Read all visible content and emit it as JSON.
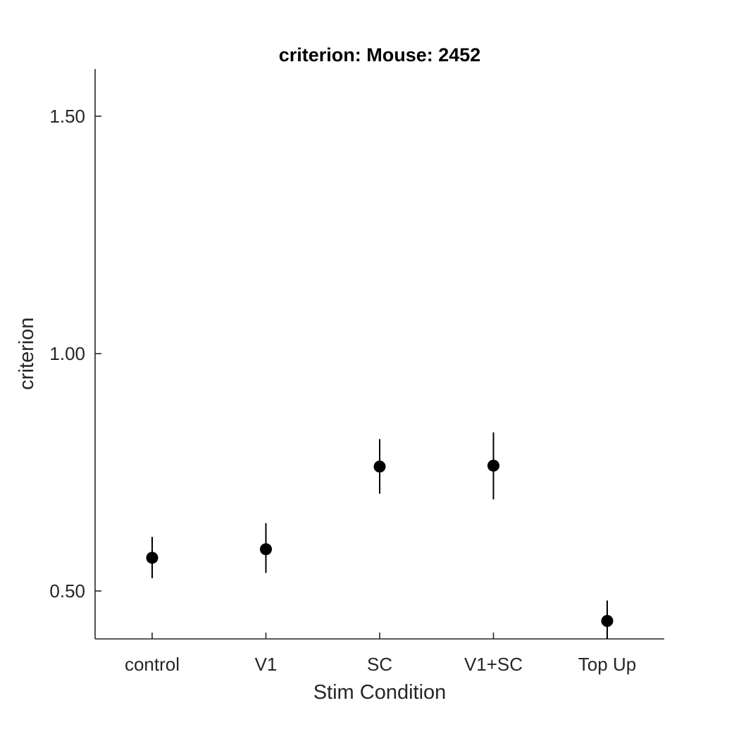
{
  "chart_data": {
    "type": "scatter",
    "title": "criterion: Mouse: 2452",
    "xlabel": "Stim Condition",
    "ylabel": "criterion",
    "categories": [
      "control",
      "V1",
      "SC",
      "V1+SC",
      "Top Up"
    ],
    "series": [
      {
        "values": [
          0.57,
          0.588,
          0.762,
          0.764,
          0.437
        ],
        "err_low": [
          0.527,
          0.538,
          0.705,
          0.693,
          0.395
        ],
        "err_high": [
          0.614,
          0.643,
          0.82,
          0.834,
          0.48
        ]
      }
    ],
    "ylim": [
      0.4,
      1.6
    ],
    "yticks": [
      0.5,
      1.0,
      1.5
    ],
    "ytick_labels": [
      "0.50",
      "1.00",
      "1.50"
    ],
    "grid": false,
    "legend": "none",
    "colors": {
      "marker": "#000000",
      "axis": "#262626"
    }
  }
}
